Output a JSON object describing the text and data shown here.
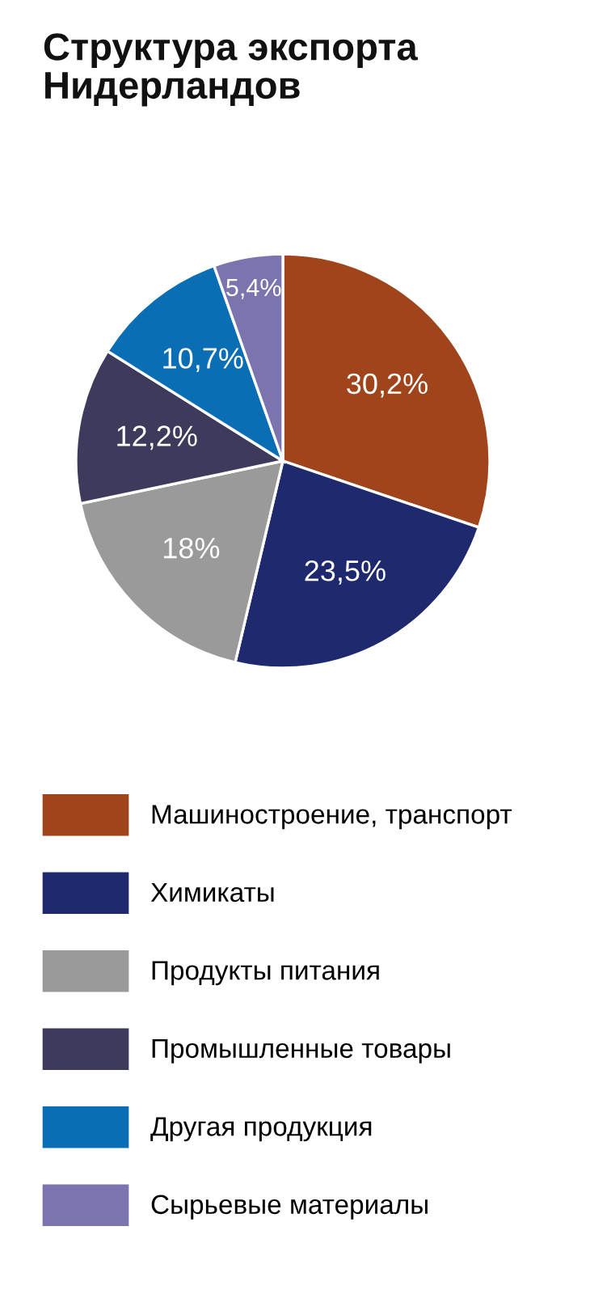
{
  "chart_data": {
    "type": "pie",
    "title": "Структура экспорта\nНидерландов",
    "categories": [
      "Машиностроение, транспорт",
      "Химикаты",
      "Продукты питания",
      "Промышленные товары",
      "Другая продукция",
      "Сырьевые материалы"
    ],
    "values": [
      30.2,
      23.5,
      18,
      12.2,
      10.7,
      5.4
    ],
    "value_labels": [
      "30,2%",
      "23,5%",
      "18%",
      "12,2%",
      "10,7%",
      "5,4%"
    ],
    "colors": [
      "#a0441c",
      "#1f2a6e",
      "#9a9a9a",
      "#3d3a5c",
      "#0a6eb4",
      "#7b74ae"
    ],
    "legend": "bottom"
  }
}
